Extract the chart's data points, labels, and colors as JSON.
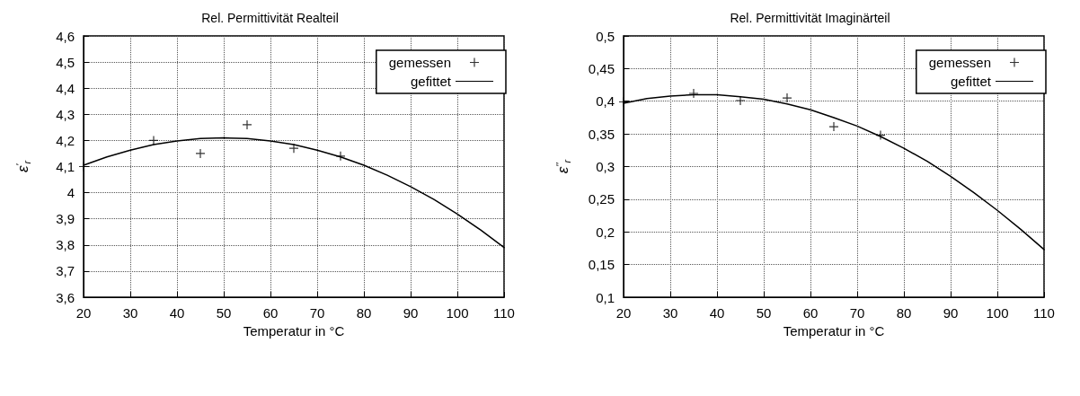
{
  "chart_data": [
    {
      "type": "scatter",
      "title": "Rel. Permittivität Realteil",
      "xlabel": "Temperatur in °C",
      "ylabel": "ε$^{'}$$_{r}$",
      "grid": true,
      "legend": "top right",
      "xlim": [
        20,
        110
      ],
      "xticks": [
        20,
        30,
        40,
        50,
        60,
        70,
        80,
        90,
        100,
        110
      ],
      "ylim": [
        3.6,
        4.6
      ],
      "yticks": [
        {
          "value": 3.6,
          "label": "3,6"
        },
        {
          "value": 3.7,
          "label": "3,7"
        },
        {
          "value": 3.8,
          "label": "3,8"
        },
        {
          "value": 3.9,
          "label": "3,9"
        },
        {
          "value": 4,
          "label": "4"
        },
        {
          "value": 4.1,
          "label": "4,1"
        },
        {
          "value": 4.2,
          "label": "4,2"
        },
        {
          "value": 4.3,
          "label": "4,3"
        },
        {
          "value": 4.4,
          "label": "4,4"
        },
        {
          "value": 4.5,
          "label": "4,5"
        },
        {
          "value": 4.6,
          "label": "4,6"
        }
      ],
      "series": [
        {
          "name": "gemessen",
          "type": "scatter",
          "marker": "cross",
          "color": "#000000",
          "x": [
            20,
            35,
            45,
            55,
            65,
            75
          ],
          "values": [
            4.1,
            4.2,
            4.15,
            4.26,
            4.17,
            4.14
          ]
        },
        {
          "name": "gefittet",
          "type": "line",
          "marker": "none",
          "line_style": "solid",
          "color": "#000000",
          "x": [
            20,
            25,
            30,
            35,
            40,
            45,
            50,
            55,
            60,
            65,
            70,
            75,
            80,
            85,
            90,
            95,
            100,
            105,
            110
          ],
          "values": [
            4.105,
            4.137,
            4.163,
            4.184,
            4.198,
            4.207,
            4.21,
            4.207,
            4.198,
            4.184,
            4.163,
            4.137,
            4.105,
            4.067,
            4.023,
            3.974,
            3.918,
            3.857,
            3.79
          ]
        }
      ]
    },
    {
      "type": "scatter",
      "title": "Rel. Permittivität Imaginärteil",
      "xlabel": "Temperatur in °C",
      "ylabel": "ε$^{''}$$_{r}$",
      "grid": true,
      "legend": "top right",
      "xlim": [
        20,
        110
      ],
      "xticks": [
        20,
        30,
        40,
        50,
        60,
        70,
        80,
        90,
        100,
        110
      ],
      "ylim": [
        0.1,
        0.5
      ],
      "yticks": [
        {
          "value": 0.1,
          "label": "0,1"
        },
        {
          "value": 0.15,
          "label": "0,15"
        },
        {
          "value": 0.2,
          "label": "0,2"
        },
        {
          "value": 0.25,
          "label": "0,25"
        },
        {
          "value": 0.3,
          "label": "0,3"
        },
        {
          "value": 0.35,
          "label": "0,35"
        },
        {
          "value": 0.4,
          "label": "0,4"
        },
        {
          "value": 0.45,
          "label": "0,45"
        },
        {
          "value": 0.5,
          "label": "0,5"
        }
      ],
      "series": [
        {
          "name": "gemessen",
          "type": "scatter",
          "marker": "cross",
          "color": "#000000",
          "x": [
            20,
            35,
            45,
            55,
            65,
            75
          ],
          "values": [
            0.399,
            0.412,
            0.401,
            0.405,
            0.361,
            0.348
          ]
        },
        {
          "name": "gefittet",
          "type": "line",
          "marker": "none",
          "line_style": "solid",
          "color": "#000000",
          "x": [
            20,
            25,
            30,
            35,
            40,
            45,
            50,
            55,
            60,
            65,
            70,
            75,
            80,
            85,
            90,
            95,
            100,
            105,
            110
          ],
          "values": [
            0.397,
            0.404,
            0.408,
            0.41,
            0.41,
            0.407,
            0.403,
            0.396,
            0.387,
            0.375,
            0.362,
            0.346,
            0.328,
            0.308,
            0.285,
            0.26,
            0.233,
            0.204,
            0.173
          ]
        }
      ]
    }
  ]
}
